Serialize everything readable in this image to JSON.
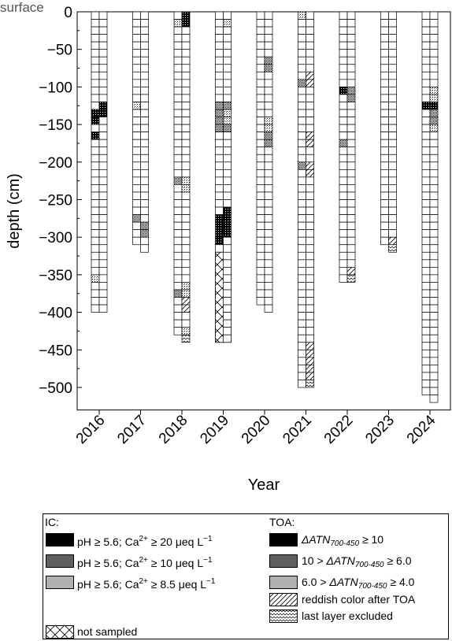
{
  "colors": {
    "black": "#000000",
    "dark_dots": "#4a4a4a",
    "medium": "#7a7a7a",
    "light_dots": "#b5b5b5"
  },
  "chart_data": {
    "type": "bar",
    "title": "",
    "xlabel": "Year",
    "ylabel": "depth (cm)",
    "surface_label": "surface",
    "ylim": [
      -530,
      0
    ],
    "yticks": [
      0,
      -50,
      -100,
      -150,
      -200,
      -250,
      -300,
      -350,
      -400,
      -450,
      -500
    ],
    "ytick_labels": [
      "0",
      "−50",
      "−100",
      "−150",
      "−200",
      "−250",
      "−300",
      "−350",
      "−400",
      "−450",
      "−500"
    ],
    "categories": [
      "2016",
      "2017",
      "2018",
      "2019",
      "2020",
      "2021",
      "2022",
      "2023",
      "2024"
    ],
    "layer_thickness_cm": 10,
    "series": [
      {
        "name": "IC",
        "max_depth": [
          400,
          310,
          430,
          440,
          390,
          500,
          360,
          310,
          510
        ]
      },
      {
        "name": "TOA",
        "max_depth": [
          400,
          320,
          440,
          440,
          400,
          500,
          360,
          320,
          520
        ]
      }
    ],
    "ic_layers": [
      {
        "year": "2016",
        "intervals": [
          [
            130,
            150,
            "ic20"
          ],
          [
            160,
            170,
            "ic20"
          ],
          [
            350,
            360,
            "ic85"
          ]
        ]
      },
      {
        "year": "2017",
        "intervals": [
          [
            120,
            130,
            "ic85"
          ],
          [
            270,
            280,
            "ic10"
          ]
        ]
      },
      {
        "year": "2018",
        "intervals": [
          [
            10,
            20,
            "ic85"
          ],
          [
            220,
            230,
            "ic10"
          ],
          [
            370,
            380,
            "ic10"
          ]
        ]
      },
      {
        "year": "2019",
        "intervals": [
          [
            120,
            140,
            "ic10"
          ],
          [
            140,
            160,
            "ic10"
          ],
          [
            270,
            310,
            "ic20"
          ],
          [
            320,
            440,
            "not_sampled"
          ]
        ]
      },
      {
        "year": "2020",
        "intervals": []
      },
      {
        "year": "2021",
        "intervals": [
          [
            0,
            10,
            "ic85"
          ],
          [
            90,
            100,
            "ic10"
          ],
          [
            200,
            210,
            "ic10"
          ]
        ]
      },
      {
        "year": "2022",
        "intervals": [
          [
            100,
            110,
            "ic20"
          ],
          [
            170,
            180,
            "ic10"
          ]
        ]
      },
      {
        "year": "2023",
        "intervals": []
      },
      {
        "year": "2024",
        "intervals": [
          [
            120,
            130,
            "ic20"
          ]
        ]
      }
    ],
    "toa_layers": [
      {
        "year": "2016",
        "intervals": [
          [
            120,
            140,
            "toa10"
          ]
        ]
      },
      {
        "year": "2017",
        "intervals": [
          [
            280,
            300,
            "toa6"
          ]
        ]
      },
      {
        "year": "2018",
        "intervals": [
          [
            0,
            20,
            "toa10"
          ],
          [
            220,
            240,
            "toa4"
          ],
          [
            360,
            380,
            "toa4"
          ],
          [
            380,
            400,
            "reddish"
          ],
          [
            420,
            430,
            "toa4"
          ],
          [
            430,
            440,
            "last"
          ]
        ]
      },
      {
        "year": "2019",
        "intervals": [
          [
            10,
            20,
            "toa4"
          ],
          [
            120,
            130,
            "toa6"
          ],
          [
            130,
            150,
            "toa4"
          ],
          [
            150,
            160,
            "toa6"
          ],
          [
            260,
            300,
            "toa10"
          ]
        ]
      },
      {
        "year": "2020",
        "intervals": [
          [
            60,
            80,
            "toa6"
          ],
          [
            140,
            160,
            "toa4"
          ],
          [
            160,
            180,
            "toa6"
          ]
        ]
      },
      {
        "year": "2021",
        "intervals": [
          [
            80,
            100,
            "reddish"
          ],
          [
            160,
            180,
            "reddish"
          ],
          [
            200,
            220,
            "reddish"
          ],
          [
            440,
            480,
            "reddish"
          ],
          [
            480,
            490,
            "reddish"
          ],
          [
            490,
            500,
            "last"
          ]
        ]
      },
      {
        "year": "2022",
        "intervals": [
          [
            100,
            120,
            "toa6"
          ],
          [
            340,
            350,
            "reddish"
          ],
          [
            350,
            360,
            "last"
          ]
        ]
      },
      {
        "year": "2023",
        "intervals": [
          [
            300,
            310,
            "reddish"
          ],
          [
            310,
            320,
            "last"
          ]
        ]
      },
      {
        "year": "2024",
        "intervals": [
          [
            100,
            120,
            "toa4"
          ],
          [
            120,
            130,
            "toa10"
          ],
          [
            130,
            150,
            "toa6"
          ],
          [
            150,
            160,
            "toa4"
          ]
        ]
      }
    ]
  },
  "legend": {
    "ic_title": "IC:",
    "toa_title": "TOA:",
    "ic20_pre": "pH ≥ 5.6; Ca",
    "ic20_sup": "2+",
    "ic20_post": " ≥ 20 μeq L",
    "ic20_unit_sup": "−1",
    "ic10_pre": "pH ≥ 5.6; Ca",
    "ic10_sup": "2+",
    "ic10_post": " ≥ 10 μeq L",
    "ic10_unit_sup": "−1",
    "ic85_pre": "pH ≥ 5.6; Ca",
    "ic85_sup": "2+",
    "ic85_post": " ≥ 8.5 μeq L",
    "ic85_unit_sup": "−1",
    "not_sampled": "not sampled",
    "atn": "ΔATN",
    "atn_sub": "700-450",
    "toa10_pre": "",
    "toa10_post": " ≥ 10",
    "toa6_pre": "10 > ",
    "toa6_post": " ≥ 6.0",
    "toa4_pre": "6.0 > ",
    "toa4_post": " ≥ 4.0",
    "reddish": "reddish color after TOA",
    "last": "last layer excluded"
  }
}
